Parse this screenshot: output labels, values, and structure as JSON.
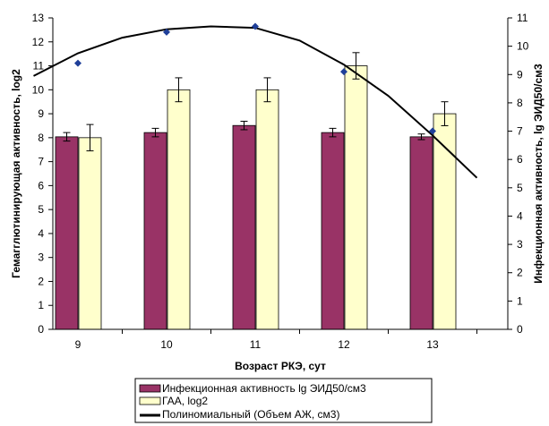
{
  "chart_data": {
    "type": "bar",
    "categories": [
      "9",
      "10",
      "11",
      "12",
      "13"
    ],
    "xlabel": "Возраст РКЭ, сут",
    "ylabel": "Гемагглютинирующая  активность, log2",
    "y2label": "Инфекционная активность, lg ЭИД50/см3",
    "ylim": [
      0,
      13
    ],
    "y2lim": [
      0,
      11
    ],
    "yticks": [
      "0",
      "1",
      "2",
      "3",
      "4",
      "5",
      "6",
      "7",
      "8",
      "9",
      "10",
      "11",
      "12",
      "13"
    ],
    "y2ticks": [
      "0",
      "1",
      "2",
      "3",
      "4",
      "5",
      "6",
      "7",
      "8",
      "9",
      "10",
      "11"
    ],
    "series": [
      {
        "name": "Инфекционная активность lg ЭИД50/см3",
        "kind": "bar",
        "axis": "right",
        "color": "#993366",
        "values": [
          6.8,
          6.95,
          7.2,
          6.95,
          6.8
        ],
        "errors": [
          0.15,
          0.15,
          0.15,
          0.15,
          0.1
        ]
      },
      {
        "name": "ГАА, log2",
        "kind": "bar",
        "axis": "left",
        "color": "#FFFFCC",
        "values": [
          8,
          10,
          10,
          11,
          9
        ],
        "errors": [
          0.55,
          0.5,
          0.5,
          0.55,
          0.5
        ]
      },
      {
        "name": "Полиномиальный (Объем АЖ, см3)",
        "kind": "trendline",
        "axis": "right",
        "color": "#000000",
        "points_x": [
          9,
          10,
          11,
          12,
          13
        ],
        "points_y": [
          9.4,
          10.5,
          10.7,
          9.1,
          7.0
        ],
        "curve_x": [
          8.5,
          9,
          9.5,
          10,
          10.5,
          11,
          11.5,
          12,
          12.5,
          13,
          13.5
        ],
        "curve_y": [
          8.95,
          9.75,
          10.3,
          10.6,
          10.7,
          10.65,
          10.2,
          9.35,
          8.25,
          6.85,
          5.35
        ]
      }
    ],
    "grid": false,
    "legend_position": "bottom"
  }
}
